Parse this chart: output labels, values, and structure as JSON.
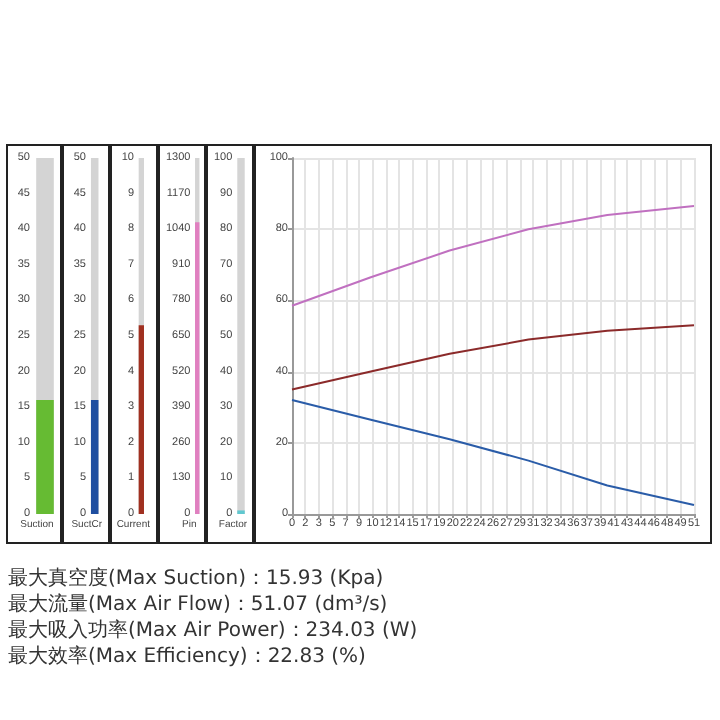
{
  "chart_data": [
    {
      "type": "bar",
      "categories": [
        "Suction"
      ],
      "values": [
        16
      ],
      "color": "#66bb33",
      "ylim": [
        0,
        50
      ],
      "yticks": [
        0,
        5,
        10,
        15,
        20,
        25,
        30,
        35,
        40,
        45,
        50
      ]
    },
    {
      "type": "bar",
      "categories": [
        "SuctCr"
      ],
      "values": [
        16
      ],
      "color": "#1f4ea0",
      "ylim": [
        0,
        50
      ],
      "yticks": [
        0,
        5,
        10,
        15,
        20,
        25,
        30,
        35,
        40,
        45,
        50
      ]
    },
    {
      "type": "bar",
      "categories": [
        "Current"
      ],
      "values": [
        5.3
      ],
      "color": "#a03020",
      "ylim": [
        0,
        10
      ],
      "yticks": [
        0,
        1,
        2,
        3,
        4,
        5,
        6,
        7,
        8,
        9,
        10
      ]
    },
    {
      "type": "bar",
      "categories": [
        "Pin"
      ],
      "values": [
        1065
      ],
      "color": "#e080c0",
      "ylim": [
        0,
        1300
      ],
      "yticks": [
        0,
        130,
        260,
        390,
        520,
        650,
        780,
        910,
        1040,
        1170,
        1300
      ]
    },
    {
      "type": "bar",
      "categories": [
        "Factor"
      ],
      "values": [
        1
      ],
      "color": "#60c8d0",
      "ylim": [
        0,
        100
      ],
      "yticks": [
        0,
        10,
        20,
        30,
        40,
        50,
        60,
        70,
        80,
        90,
        100
      ]
    },
    {
      "type": "line",
      "xlim": [
        0,
        51
      ],
      "ylim": [
        0,
        100
      ],
      "yticks": [
        0,
        20,
        40,
        60,
        80,
        100
      ],
      "grid": true,
      "xticks": [
        0,
        {
          "value": 1.7,
          "label": "2"
        },
        {
          "value": 3.4,
          "label": "3"
        },
        {
          "value": 5.1,
          "label": "5"
        },
        {
          "value": 6.8,
          "label": "7"
        },
        {
          "value": 8.5,
          "label": "9"
        },
        {
          "value": 10.2,
          "label": "10"
        },
        {
          "value": 11.9,
          "label": "12"
        },
        {
          "value": 13.6,
          "label": "14"
        },
        {
          "value": 15.3,
          "label": "15"
        },
        {
          "value": 17,
          "label": "17"
        },
        {
          "value": 18.7,
          "label": "19"
        },
        {
          "value": 20.4,
          "label": "20"
        },
        {
          "value": 22.1,
          "label": "22"
        },
        {
          "value": 23.8,
          "label": "24"
        },
        {
          "value": 25.5,
          "label": "26"
        },
        {
          "value": 27.2,
          "label": "27"
        },
        {
          "value": 28.9,
          "label": "29"
        },
        {
          "value": 30.6,
          "label": "31"
        },
        {
          "value": 32.3,
          "label": "32"
        },
        {
          "value": 34,
          "label": "34"
        },
        {
          "value": 35.7,
          "label": "36"
        },
        {
          "value": 37.4,
          "label": "37"
        },
        {
          "value": 39.1,
          "label": "39"
        },
        {
          "value": 40.8,
          "label": "41"
        },
        {
          "value": 42.5,
          "label": "43"
        },
        {
          "value": 44.2,
          "label": "44"
        },
        {
          "value": 45.9,
          "label": "46"
        },
        {
          "value": 47.6,
          "label": "48"
        },
        {
          "value": 49.3,
          "label": "49"
        },
        51
      ],
      "x": [
        0,
        10,
        20,
        30,
        40,
        51
      ],
      "series": [
        {
          "color": "#c070c0",
          "values": [
            58.5,
            66.5,
            74,
            80,
            84,
            86.5
          ]
        },
        {
          "color": "#8b2a2a",
          "values": [
            35,
            40,
            45,
            49,
            51.5,
            53
          ]
        },
        {
          "color": "#2a5ca8",
          "values": [
            32,
            26.5,
            21,
            15,
            8,
            2.5
          ]
        }
      ]
    },
    {
      "type": "other",
      "annotations": [
        "最大真空度(Max Suction)：15.93 (Kpa)",
        "最大流量(Max Air Flow)：51.07 (dm³/s)",
        "最大吸入功率(Max Air Power)：234.03 (W)",
        "最大效率(Max Efficiency)：22.83 (%)"
      ]
    }
  ]
}
